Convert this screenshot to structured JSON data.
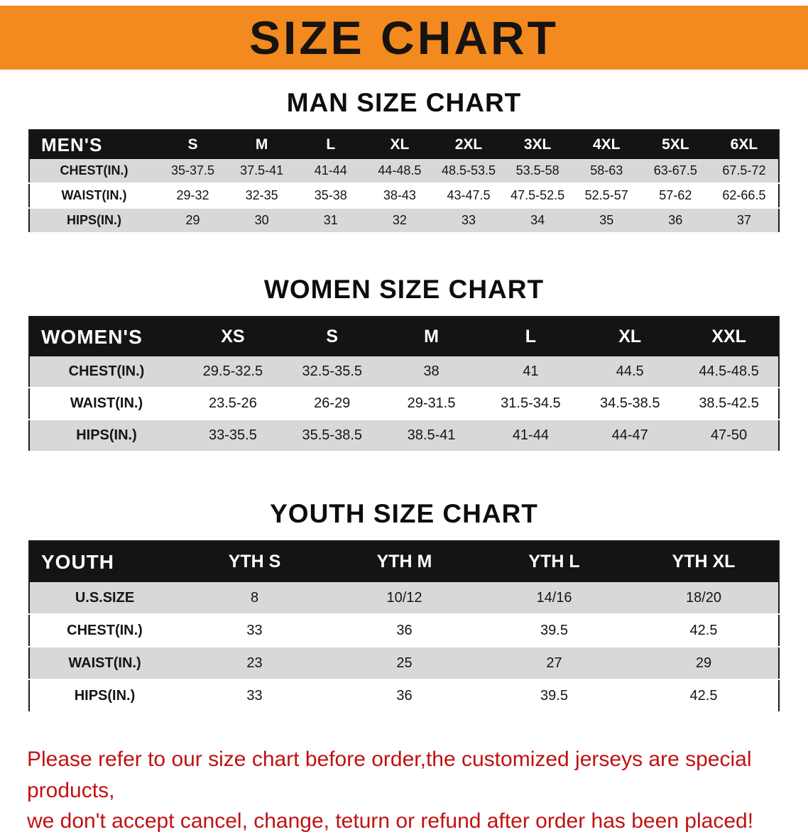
{
  "banner": {
    "title": "SIZE CHART",
    "bg_color": "#f28a20",
    "text_color": "#171310"
  },
  "chart_data": [
    {
      "type": "table",
      "title": "MAN SIZE CHART",
      "columns": [
        "MEN'S",
        "S",
        "M",
        "L",
        "XL",
        "2XL",
        "3XL",
        "4XL",
        "5XL",
        "6XL"
      ],
      "rows": [
        [
          "CHEST(IN.)",
          "35-37.5",
          "37.5-41",
          "41-44",
          "44-48.5",
          "48.5-53.5",
          "53.5-58",
          "58-63",
          "63-67.5",
          "67.5-72"
        ],
        [
          "WAIST(IN.)",
          "29-32",
          "32-35",
          "35-38",
          "38-43",
          "43-47.5",
          "47.5-52.5",
          "52.5-57",
          "57-62",
          "62-66.5"
        ],
        [
          "HIPS(IN.)",
          "29",
          "30",
          "31",
          "32",
          "33",
          "34",
          "35",
          "36",
          "37"
        ]
      ]
    },
    {
      "type": "table",
      "title": "WOMEN SIZE CHART",
      "columns": [
        "WOMEN'S",
        "XS",
        "S",
        "M",
        "L",
        "XL",
        "XXL"
      ],
      "rows": [
        [
          "CHEST(IN.)",
          "29.5-32.5",
          "32.5-35.5",
          "38",
          "41",
          "44.5",
          "44.5-48.5"
        ],
        [
          "WAIST(IN.)",
          "23.5-26",
          "26-29",
          "29-31.5",
          "31.5-34.5",
          "34.5-38.5",
          "38.5-42.5"
        ],
        [
          "HIPS(IN.)",
          "33-35.5",
          "35.5-38.5",
          "38.5-41",
          "41-44",
          "44-47",
          "47-50"
        ]
      ]
    },
    {
      "type": "table",
      "title": "YOUTH SIZE CHART",
      "columns": [
        "YOUTH",
        "YTH S",
        "YTH M",
        "YTH L",
        "YTH XL"
      ],
      "rows": [
        [
          "U.S.SIZE",
          "8",
          "10/12",
          "14/16",
          "18/20"
        ],
        [
          "CHEST(IN.)",
          "33",
          "36",
          "39.5",
          "42.5"
        ],
        [
          "WAIST(IN.)",
          "23",
          "25",
          "27",
          "29"
        ],
        [
          "HIPS(IN.)",
          "33",
          "36",
          "39.5",
          "42.5"
        ]
      ]
    }
  ],
  "footer": {
    "line1": "Please refer to our size chart before order,the customized jerseys are special products,",
    "line2": "we don't accept cancel, change, teturn or refund after order has been placed!",
    "color": "#c01212"
  }
}
